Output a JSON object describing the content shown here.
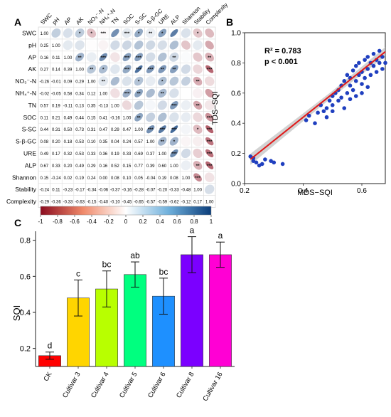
{
  "panels": {
    "a": "A",
    "b": "B",
    "c": "C"
  },
  "chart_data": [
    {
      "panel": "A",
      "type": "heatmap",
      "variables": [
        "SWC",
        "pH",
        "AP",
        "AK",
        "NO₃⁻-N",
        "NH₄⁺-N",
        "TN",
        "SOC",
        "S-SC",
        "S-β-GC",
        "URE",
        "ALP",
        "Shannon",
        "Stability",
        "Complexity"
      ],
      "lower_matrix": [
        [
          "1.00"
        ],
        [
          "0.25",
          "1.00"
        ],
        [
          "0.16",
          "0.11",
          "1.00"
        ],
        [
          "0.27",
          "0.14",
          "0.39",
          "1.00"
        ],
        [
          "-0.26",
          "-0.01",
          "0.09",
          "0.29",
          "1.00"
        ],
        [
          "-0.02",
          "-0.05",
          "0.58",
          "0.34",
          "0.12",
          "1.00"
        ],
        [
          "0.57",
          "0.19",
          "-0.11",
          "0.13",
          "0.35",
          "-0.13",
          "1.00"
        ],
        [
          "0.11",
          "0.21",
          "0.49",
          "0.44",
          "0.15",
          "0.41",
          "-0.16",
          "1.00"
        ],
        [
          "0.44",
          "0.31",
          "0.50",
          "0.73",
          "0.31",
          "0.47",
          "0.29",
          "0.47",
          "1.00"
        ],
        [
          "0.08",
          "0.20",
          "0.18",
          "0.53",
          "0.10",
          "0.35",
          "0.04",
          "0.24",
          "0.57",
          "1.00"
        ],
        [
          "0.49",
          "0.17",
          "0.32",
          "0.53",
          "0.33",
          "0.36",
          "0.19",
          "0.33",
          "0.69",
          "0.37",
          "1.00"
        ],
        [
          "0.67",
          "0.33",
          "0.20",
          "0.49",
          "0.29",
          "0.16",
          "0.52",
          "0.15",
          "0.77",
          "0.39",
          "0.60",
          "1.00"
        ],
        [
          "0.15",
          "-0.24",
          "0.02",
          "0.19",
          "0.24",
          "0.00",
          "0.08",
          "0.10",
          "0.05",
          "-0.04",
          "0.19",
          "0.08",
          "1.00"
        ],
        [
          "-0.24",
          "0.11",
          "-0.23",
          "-0.17",
          "-0.34",
          "-0.06",
          "-0.37",
          "-0.16",
          "-0.28",
          "-0.07",
          "-0.20",
          "-0.33",
          "-0.48",
          "1.00"
        ],
        [
          "-0.29",
          "-0.36",
          "-0.33",
          "-0.63",
          "-0.15",
          "-0.40",
          "-0.10",
          "-0.45",
          "-0.65",
          "-0.57",
          "-0.59",
          "-0.62",
          "-0.12",
          "0.17",
          "1.00"
        ]
      ],
      "upper_significance": [
        [
          "",
          "",
          "",
          "*",
          "*",
          "***",
          "",
          "***",
          "*",
          "**",
          "*",
          "",
          "",
          "*",
          ""
        ],
        [
          "",
          "",
          "",
          "",
          "",
          "",
          "",
          "",
          "",
          "",
          "",
          "",
          "",
          "",
          ""
        ],
        [
          "",
          "",
          "",
          "**",
          "",
          "***",
          "",
          "***",
          "***",
          "",
          "",
          "**",
          "",
          "",
          "**"
        ],
        [
          "",
          "",
          "",
          "",
          "**",
          "*",
          "",
          "***",
          "***",
          "***",
          "**",
          "**",
          "",
          "",
          "***"
        ],
        [
          "",
          "",
          "",
          "",
          "",
          "**",
          "",
          "",
          "*",
          "",
          "*",
          "",
          "",
          "**",
          ""
        ],
        [
          "",
          "",
          "",
          "",
          "",
          "",
          "",
          "***",
          "**",
          "",
          "**",
          "",
          "",
          "",
          ""
        ],
        [
          "",
          "",
          "",
          "",
          "",
          "",
          "",
          "",
          "",
          "",
          "",
          "***",
          "",
          "**",
          ""
        ],
        [
          "",
          "",
          "",
          "",
          "",
          "",
          "",
          "",
          "**",
          "",
          "",
          "",
          "",
          "",
          "***"
        ],
        [
          "",
          "",
          "",
          "",
          "",
          "",
          "",
          "",
          "",
          "***",
          "***",
          "***",
          "",
          "*",
          "***"
        ],
        [
          "",
          "",
          "",
          "",
          "",
          "",
          "",
          "",
          "",
          "",
          "**",
          "*",
          "",
          "",
          "***"
        ],
        [
          "",
          "",
          "",
          "",
          "",
          "",
          "",
          "",
          "",
          "",
          "",
          "***",
          "",
          "",
          "***"
        ],
        [
          "",
          "",
          "",
          "",
          "",
          "",
          "",
          "",
          "",
          "",
          "",
          "",
          "",
          "**",
          "***"
        ],
        [
          "",
          "",
          "",
          "",
          "",
          "",
          "",
          "",
          "",
          "",
          "",
          "",
          "",
          "***",
          ""
        ],
        [
          "",
          "",
          "",
          "",
          "",
          "",
          "",
          "",
          "",
          "",
          "",
          "",
          "",
          "",
          ""
        ],
        [
          "",
          "",
          "",
          "",
          "",
          "",
          "",
          "",
          "",
          "",
          "",
          "",
          "",
          "",
          ""
        ]
      ],
      "colorbar": {
        "min": -1,
        "max": 1,
        "ticks": [
          "-1",
          "-0.8",
          "-0.6",
          "-0.4",
          "-0.2",
          "0",
          "0.2",
          "0.4",
          "0.6",
          "0.8",
          "1"
        ],
        "low_color": "#8b0c1f",
        "mid_color": "#ffffff",
        "high_color": "#0b3d7a"
      }
    },
    {
      "panel": "B",
      "type": "scatter",
      "xlabel": "MDS−SQI",
      "ylabel": "TDS−SQI",
      "xlim": [
        0.2,
        0.68
      ],
      "ylim": [
        0.0,
        1.0
      ],
      "xticks": [
        "0.2",
        "0.4",
        "0.6"
      ],
      "yticks": [
        "0.0",
        "0.2",
        "0.4",
        "0.6",
        "0.8",
        "1.0"
      ],
      "annotation_r2": "R² = 0.783",
      "annotation_p": "p < 0.001",
      "point_color": "#1f3fbf",
      "line_color": "#e01a1a",
      "band_color": "#bfbfbf",
      "fit": {
        "slope": 1.55,
        "intercept": -0.18
      },
      "points": [
        [
          0.22,
          0.18
        ],
        [
          0.23,
          0.17
        ],
        [
          0.23,
          0.15
        ],
        [
          0.24,
          0.14
        ],
        [
          0.26,
          0.13
        ],
        [
          0.27,
          0.16
        ],
        [
          0.29,
          0.15
        ],
        [
          0.3,
          0.14
        ],
        [
          0.33,
          0.13
        ],
        [
          0.25,
          0.12
        ],
        [
          0.41,
          0.42
        ],
        [
          0.42,
          0.45
        ],
        [
          0.44,
          0.4
        ],
        [
          0.45,
          0.47
        ],
        [
          0.46,
          0.52
        ],
        [
          0.47,
          0.48
        ],
        [
          0.48,
          0.5
        ],
        [
          0.49,
          0.55
        ],
        [
          0.5,
          0.52
        ],
        [
          0.5,
          0.58
        ],
        [
          0.51,
          0.6
        ],
        [
          0.52,
          0.55
        ],
        [
          0.52,
          0.62
        ],
        [
          0.53,
          0.65
        ],
        [
          0.53,
          0.57
        ],
        [
          0.54,
          0.68
        ],
        [
          0.55,
          0.6
        ],
        [
          0.55,
          0.72
        ],
        [
          0.56,
          0.65
        ],
        [
          0.56,
          0.7
        ],
        [
          0.57,
          0.75
        ],
        [
          0.57,
          0.62
        ],
        [
          0.58,
          0.68
        ],
        [
          0.58,
          0.78
        ],
        [
          0.59,
          0.72
        ],
        [
          0.59,
          0.8
        ],
        [
          0.6,
          0.74
        ],
        [
          0.6,
          0.66
        ],
        [
          0.61,
          0.82
        ],
        [
          0.61,
          0.7
        ],
        [
          0.62,
          0.76
        ],
        [
          0.62,
          0.84
        ],
        [
          0.63,
          0.8
        ],
        [
          0.63,
          0.72
        ],
        [
          0.64,
          0.86
        ],
        [
          0.64,
          0.78
        ],
        [
          0.65,
          0.82
        ],
        [
          0.65,
          0.74
        ],
        [
          0.66,
          0.88
        ],
        [
          0.66,
          0.8
        ],
        [
          0.67,
          0.84
        ],
        [
          0.67,
          0.76
        ],
        [
          0.68,
          0.8
        ],
        [
          0.48,
          0.44
        ],
        [
          0.5,
          0.48
        ],
        [
          0.54,
          0.5
        ],
        [
          0.56,
          0.56
        ],
        [
          0.6,
          0.6
        ],
        [
          0.62,
          0.64
        ],
        [
          0.58,
          0.58
        ]
      ]
    },
    {
      "panel": "C",
      "type": "bar",
      "ylabel": "SQI",
      "ylim": [
        0.1,
        0.85
      ],
      "yticks": [
        "0.2",
        "0.4",
        "0.6",
        "0.8"
      ],
      "categories": [
        "CK",
        "Cultivar 3",
        "Cultivar 4",
        "Cultivar 5",
        "Cultivar 6",
        "Cultivar 8",
        "Cultivar 16"
      ],
      "values": [
        0.16,
        0.48,
        0.53,
        0.61,
        0.49,
        0.72,
        0.72
      ],
      "errors": [
        0.02,
        0.1,
        0.1,
        0.07,
        0.1,
        0.1,
        0.07
      ],
      "letters": [
        "d",
        "c",
        "bc",
        "ab",
        "bc",
        "a",
        "a"
      ],
      "colors": [
        "#ff0000",
        "#ffd500",
        "#b8ff00",
        "#00ff7f",
        "#1e90ff",
        "#7b00ff",
        "#ff00d4"
      ]
    }
  ]
}
